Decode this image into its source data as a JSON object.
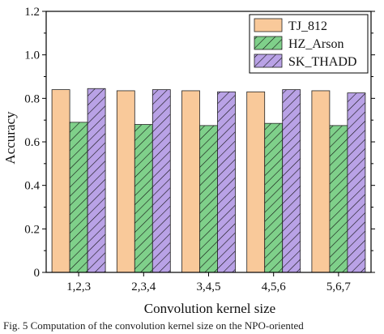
{
  "chart_data": {
    "type": "bar",
    "xlabel": "Convolution kernel size",
    "ylabel": "Accuracy",
    "categories": [
      "1,2,3",
      "2,3,4",
      "3,4,5",
      "4,5,6",
      "5,6,7"
    ],
    "ylim": [
      0,
      1.2
    ],
    "yticks": [
      "0",
      "0.2",
      "0.4",
      "0.6",
      "0.8",
      "1.0",
      "1.2"
    ],
    "legend_position": "top-right",
    "grid": false,
    "series": [
      {
        "name": "TJ_812",
        "values": [
          0.84,
          0.835,
          0.835,
          0.83,
          0.835
        ],
        "color": "#f9c99a",
        "pattern": "solid"
      },
      {
        "name": "HZ_Arson",
        "values": [
          0.69,
          0.68,
          0.675,
          0.685,
          0.675
        ],
        "color": "#7fd08a",
        "pattern": "diagonal-hatch"
      },
      {
        "name": "SK_THADD",
        "values": [
          0.845,
          0.84,
          0.83,
          0.84,
          0.825
        ],
        "color": "#b9a2e6",
        "pattern": "diagonal-hatch"
      }
    ]
  },
  "caption": "Fig. 5   Computation of the convolution kernel size on the NPO-oriented"
}
